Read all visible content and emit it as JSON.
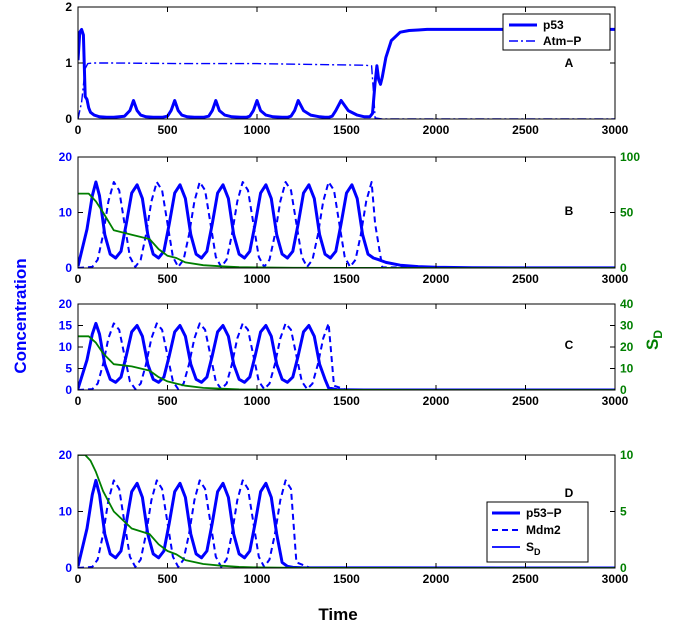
{
  "colors": {
    "blue": "#0000FF",
    "green": "#007F00",
    "axis": "#000000"
  },
  "labels": {
    "xlabel": "Time",
    "ylabel_left": "Concentration",
    "ylabel_right": "S",
    "ylabel_right_sub": "D"
  },
  "chart_data": [
    {
      "type": "line",
      "panel": "A",
      "xlim": [
        0,
        3000
      ],
      "ylim": [
        0,
        2
      ],
      "xticks": [
        "0",
        "500",
        "1000",
        "1500",
        "2000",
        "2500",
        "3000"
      ],
      "yticks": [
        "0",
        "1",
        "2"
      ],
      "legend": {
        "placement": "top-right",
        "entries": [
          "p53",
          "Atm−P"
        ]
      },
      "series": [
        {
          "name": "p53",
          "style": "solid-thick",
          "x": [
            0,
            10,
            20,
            30,
            40,
            50,
            60,
            70,
            90,
            120,
            160,
            200,
            260,
            290,
            310,
            330,
            350,
            380,
            420,
            470,
            500,
            520,
            540,
            560,
            580,
            610,
            650,
            700,
            730,
            750,
            770,
            790,
            820,
            860,
            910,
            940,
            960,
            980,
            1000,
            1020,
            1050,
            1090,
            1140,
            1170,
            1190,
            1210,
            1230,
            1260,
            1300,
            1350,
            1380,
            1400,
            1420,
            1440,
            1470,
            1510,
            1560,
            1600,
            1630,
            1645,
            1660,
            1670,
            1680,
            1690,
            1700,
            1720,
            1750,
            1800,
            1850,
            1900,
            1950,
            2000,
            2500,
            3000
          ],
          "y": [
            1.05,
            1.55,
            1.6,
            1.5,
            0.4,
            0.35,
            0.2,
            0.12,
            0.07,
            0.04,
            0.03,
            0.03,
            0.05,
            0.15,
            0.33,
            0.15,
            0.07,
            0.04,
            0.03,
            0.03,
            0.05,
            0.15,
            0.33,
            0.15,
            0.07,
            0.04,
            0.03,
            0.03,
            0.05,
            0.15,
            0.33,
            0.15,
            0.07,
            0.04,
            0.03,
            0.03,
            0.05,
            0.15,
            0.33,
            0.15,
            0.07,
            0.04,
            0.03,
            0.03,
            0.05,
            0.15,
            0.33,
            0.15,
            0.07,
            0.04,
            0.03,
            0.03,
            0.05,
            0.15,
            0.33,
            0.15,
            0.07,
            0.04,
            0.04,
            0.1,
            0.65,
            0.95,
            0.7,
            0.62,
            0.75,
            1.1,
            1.4,
            1.55,
            1.58,
            1.59,
            1.6,
            1.6,
            1.6,
            1.6
          ]
        },
        {
          "name": "Atm−P",
          "style": "dashdot",
          "x": [
            0,
            20,
            40,
            55,
            80,
            200,
            600,
            1000,
            1400,
            1600,
            1640,
            1650,
            1660,
            1700,
            2000,
            3000
          ],
          "y": [
            0.0,
            0.3,
            0.9,
            0.99,
            1.0,
            1.0,
            0.99,
            0.99,
            0.97,
            0.96,
            0.95,
            0.5,
            0.02,
            0.0,
            0.0,
            0.0
          ]
        }
      ]
    },
    {
      "type": "line",
      "panel": "B",
      "xlim": [
        0,
        3000
      ],
      "ylim": [
        0,
        20
      ],
      "ylim_right": [
        0,
        100
      ],
      "xticks": [
        "0",
        "500",
        "1000",
        "1500",
        "2000",
        "2500",
        "3000"
      ],
      "yticks": [
        "0",
        "10",
        "20"
      ],
      "yticks_right": [
        "0",
        "50",
        "100"
      ],
      "series": [
        {
          "name": "p53−P",
          "style": "solid-thick",
          "x": [
            0,
            50,
            80,
            100,
            120,
            150,
            180,
            210,
            240,
            270,
            300,
            330,
            360,
            390,
            420,
            450,
            480,
            510,
            540,
            570,
            600,
            630,
            660,
            690,
            720,
            750,
            780,
            810,
            840,
            870,
            900,
            930,
            960,
            990,
            1020,
            1050,
            1080,
            1110,
            1140,
            1170,
            1200,
            1230,
            1260,
            1290,
            1320,
            1350,
            1380,
            1410,
            1440,
            1470,
            1500,
            1530,
            1560,
            1590,
            1620,
            1650,
            1680,
            1720,
            1800,
            1900,
            2000,
            2200,
            2500,
            3000
          ],
          "y": [
            0.3,
            7,
            13,
            15.5,
            13,
            6,
            2.5,
            1.8,
            3,
            8,
            13.5,
            15,
            12.5,
            6,
            2.5,
            1.8,
            3,
            8,
            13.5,
            15,
            12.5,
            6,
            2.5,
            1.8,
            3,
            8,
            13.5,
            15,
            12.5,
            6,
            2.5,
            1.8,
            3,
            8,
            13.5,
            15,
            12.5,
            6,
            2.5,
            1.8,
            3,
            8,
            13.5,
            15,
            12.5,
            6,
            2.5,
            1.8,
            3,
            8,
            13.5,
            15,
            12.5,
            6,
            2.5,
            1.8,
            1.5,
            1.0,
            0.5,
            0.25,
            0.12,
            0.05,
            0.02,
            0.01
          ]
        },
        {
          "name": "Mdm2",
          "style": "dashed",
          "x": [
            0,
            80,
            110,
            140,
            170,
            200,
            230,
            260,
            290,
            320,
            350,
            380,
            410,
            440,
            470,
            500,
            530,
            560,
            590,
            620,
            650,
            680,
            710,
            740,
            770,
            800,
            830,
            860,
            890,
            920,
            950,
            980,
            1010,
            1040,
            1070,
            1100,
            1130,
            1160,
            1190,
            1220,
            1250,
            1280,
            1310,
            1340,
            1370,
            1400,
            1430,
            1460,
            1490,
            1520,
            1550,
            1580,
            1610,
            1640,
            1660,
            1700,
            3000
          ],
          "y": [
            0,
            0.2,
            1.5,
            6,
            12,
            15.5,
            14,
            8,
            2,
            0.2,
            1.5,
            6,
            12,
            15.5,
            14,
            8,
            2,
            0.2,
            1.5,
            6,
            12,
            15.5,
            14,
            8,
            2,
            0.2,
            1.5,
            6,
            12,
            15.5,
            14,
            8,
            2,
            0.2,
            1.5,
            6,
            12,
            15.5,
            14,
            8,
            2,
            0.2,
            1.5,
            6,
            12,
            15.5,
            14,
            8,
            2,
            0.2,
            1.5,
            6,
            12,
            15.5,
            8,
            0.1,
            0
          ]
        },
        {
          "name": "S_D",
          "style": "solid-green",
          "axis": "right",
          "x": [
            0,
            60,
            100,
            140,
            200,
            300,
            400,
            450,
            500,
            550,
            600,
            700,
            800,
            900,
            1000,
            1200,
            1500,
            2000,
            3000
          ],
          "y": [
            67,
            67,
            60,
            50,
            34,
            30,
            26,
            17,
            11,
            9,
            5,
            2.5,
            1.5,
            0.8,
            0.5,
            0.2,
            0.1,
            0,
            0
          ]
        }
      ]
    },
    {
      "type": "line",
      "panel": "C",
      "xlim": [
        0,
        3000
      ],
      "ylim": [
        0,
        20
      ],
      "ylim_right": [
        0,
        40
      ],
      "xticks": [
        "0",
        "500",
        "1000",
        "1500",
        "2000",
        "2500",
        "3000"
      ],
      "yticks": [
        "0",
        "5",
        "10",
        "15",
        "20"
      ],
      "yticks_right": [
        "0",
        "10",
        "20",
        "30",
        "40"
      ],
      "series": [
        {
          "name": "p53−P",
          "style": "solid-thick",
          "x": [
            0,
            50,
            80,
            100,
            120,
            150,
            180,
            210,
            240,
            270,
            300,
            330,
            360,
            390,
            420,
            450,
            480,
            510,
            540,
            570,
            600,
            630,
            660,
            690,
            720,
            750,
            780,
            810,
            840,
            870,
            900,
            930,
            960,
            990,
            1020,
            1050,
            1080,
            1110,
            1140,
            1170,
            1200,
            1230,
            1260,
            1290,
            1320,
            1350,
            1380,
            1400,
            1450,
            1600,
            3000
          ],
          "y": [
            0.3,
            7,
            13,
            15.5,
            13,
            6,
            2.5,
            1.8,
            3,
            8,
            13.5,
            15,
            12.5,
            6,
            2.5,
            1.8,
            3,
            8,
            13.5,
            15,
            12.5,
            6,
            2.5,
            1.8,
            3,
            8,
            13.5,
            15,
            12.5,
            6,
            2.5,
            1.8,
            3,
            8,
            13.5,
            15,
            12.5,
            6,
            2.5,
            1.8,
            3,
            8,
            13.5,
            15,
            12.5,
            6,
            2.5,
            0.5,
            0.05,
            0.01,
            0
          ]
        },
        {
          "name": "Mdm2",
          "style": "dashed",
          "x": [
            0,
            80,
            110,
            140,
            170,
            200,
            230,
            260,
            290,
            320,
            350,
            380,
            410,
            440,
            470,
            500,
            530,
            560,
            590,
            620,
            650,
            680,
            710,
            740,
            770,
            800,
            830,
            860,
            890,
            920,
            950,
            980,
            1010,
            1040,
            1070,
            1100,
            1130,
            1160,
            1190,
            1220,
            1250,
            1280,
            1310,
            1340,
            1370,
            1400,
            1430,
            1500,
            3000
          ],
          "y": [
            0,
            0.2,
            1.5,
            6,
            12,
            15.5,
            14,
            8,
            2,
            0.2,
            1.5,
            6,
            12,
            15.5,
            14,
            8,
            2,
            0.2,
            1.5,
            6,
            12,
            15.5,
            14,
            8,
            2,
            0.2,
            1.5,
            6,
            12,
            15.5,
            14,
            8,
            2,
            0.2,
            1.5,
            6,
            12,
            15.5,
            14,
            8,
            2,
            0.2,
            1.5,
            6,
            12,
            15.5,
            1.0,
            0,
            0
          ]
        },
        {
          "name": "S_D",
          "style": "solid-green",
          "axis": "right",
          "x": [
            0,
            60,
            100,
            140,
            200,
            300,
            400,
            450,
            500,
            550,
            600,
            700,
            800,
            900,
            1000,
            1200,
            1500,
            2000,
            3000
          ],
          "y": [
            25,
            25,
            22,
            17,
            12,
            11,
            9,
            6,
            4,
            3,
            2,
            1,
            0.6,
            0.3,
            0.2,
            0.1,
            0.05,
            0,
            0
          ]
        }
      ]
    },
    {
      "type": "line",
      "panel": "D",
      "xlim": [
        0,
        3000
      ],
      "ylim": [
        0,
        20
      ],
      "ylim_right": [
        0,
        10
      ],
      "xticks": [
        "0",
        "500",
        "1000",
        "1500",
        "2000",
        "2500",
        "3000"
      ],
      "yticks": [
        "0",
        "10",
        "20"
      ],
      "yticks_right": [
        "0",
        "5",
        "10"
      ],
      "legend": {
        "placement": "lower-right",
        "entries": [
          "p53−P",
          "Mdm2",
          "S_D"
        ]
      },
      "series": [
        {
          "name": "p53−P",
          "style": "solid-thick",
          "x": [
            0,
            50,
            80,
            100,
            120,
            150,
            180,
            210,
            240,
            270,
            300,
            330,
            360,
            390,
            420,
            450,
            480,
            510,
            540,
            570,
            600,
            630,
            660,
            690,
            720,
            750,
            780,
            810,
            840,
            870,
            900,
            930,
            960,
            990,
            1020,
            1050,
            1080,
            1110,
            1140,
            1170,
            1200,
            1250,
            1400,
            3000
          ],
          "y": [
            0.3,
            7,
            13,
            15.5,
            13,
            6,
            2.5,
            1.8,
            3,
            8,
            13.5,
            15,
            12.5,
            6,
            2.5,
            1.8,
            3,
            8,
            13.5,
            15,
            12.5,
            6,
            2.5,
            1.8,
            3,
            8,
            13.5,
            15,
            12.5,
            6,
            2.5,
            1.8,
            3,
            8,
            13.5,
            15,
            12.5,
            6,
            1.0,
            0.3,
            0.1,
            0.03,
            0.01,
            0
          ]
        },
        {
          "name": "Mdm2",
          "style": "dashed",
          "x": [
            0,
            80,
            110,
            140,
            170,
            200,
            230,
            260,
            290,
            320,
            350,
            380,
            410,
            440,
            470,
            500,
            530,
            560,
            590,
            620,
            650,
            680,
            710,
            740,
            770,
            800,
            830,
            860,
            890,
            920,
            950,
            980,
            1010,
            1040,
            1070,
            1100,
            1130,
            1160,
            1190,
            1220,
            1300,
            3000
          ],
          "y": [
            0,
            0.2,
            1.5,
            6,
            12,
            15.5,
            14,
            8,
            2,
            0.2,
            1.5,
            6,
            12,
            15.5,
            14,
            8,
            2,
            0.2,
            1.5,
            6,
            12,
            15.5,
            14,
            8,
            2,
            0.2,
            1.5,
            6,
            12,
            15.5,
            14,
            8,
            2,
            0.2,
            1.5,
            6,
            12,
            15.5,
            14,
            1.0,
            0,
            0
          ]
        },
        {
          "name": "S_D",
          "style": "solid-green",
          "axis": "right",
          "x": [
            0,
            40,
            70,
            100,
            140,
            200,
            300,
            400,
            450,
            500,
            550,
            600,
            700,
            800,
            900,
            1000,
            1200,
            1500,
            2000,
            3000
          ],
          "y": [
            10,
            10,
            9.5,
            8.5,
            6.8,
            5,
            3.5,
            3,
            2.1,
            1.5,
            1.2,
            0.7,
            0.35,
            0.2,
            0.1,
            0.05,
            0.02,
            0.01,
            0,
            0
          ]
        }
      ]
    }
  ]
}
